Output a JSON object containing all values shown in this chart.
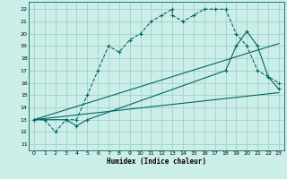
{
  "xlabel": "Humidex (Indice chaleur)",
  "bg_color": "#cceee8",
  "grid_color": "#99ccc4",
  "line_color": "#006666",
  "x_ticks": [
    0,
    1,
    2,
    3,
    4,
    5,
    6,
    7,
    8,
    9,
    10,
    11,
    12,
    13,
    14,
    15,
    16,
    17,
    18,
    19,
    20,
    21,
    22,
    23
  ],
  "y_ticks": [
    11,
    12,
    13,
    14,
    15,
    16,
    17,
    18,
    19,
    20,
    21,
    22
  ],
  "ylim": [
    10.5,
    22.6
  ],
  "xlim": [
    -0.5,
    23.5
  ],
  "curve1_x": [
    0,
    1,
    2,
    3,
    4,
    5,
    6,
    7,
    8,
    9,
    10,
    11,
    12,
    13,
    13,
    14,
    15,
    16,
    17,
    18,
    19,
    20,
    21,
    22,
    23
  ],
  "curve1_y": [
    13,
    13,
    12,
    13,
    13,
    15,
    17,
    19,
    18.5,
    19.5,
    20,
    21,
    21.5,
    22,
    21.5,
    21,
    21.5,
    22,
    22,
    22,
    20,
    19,
    17,
    16.5,
    16
  ],
  "curve2_x": [
    0,
    3,
    4,
    5,
    18,
    19,
    20,
    21,
    22,
    23
  ],
  "curve2_y": [
    13,
    13,
    12.5,
    13,
    17,
    19,
    20.2,
    19,
    16.5,
    15.5
  ],
  "curve3_x": [
    0,
    23
  ],
  "curve3_y": [
    13,
    15.2
  ],
  "curve4_x": [
    0,
    23
  ],
  "curve4_y": [
    13,
    19.2
  ]
}
